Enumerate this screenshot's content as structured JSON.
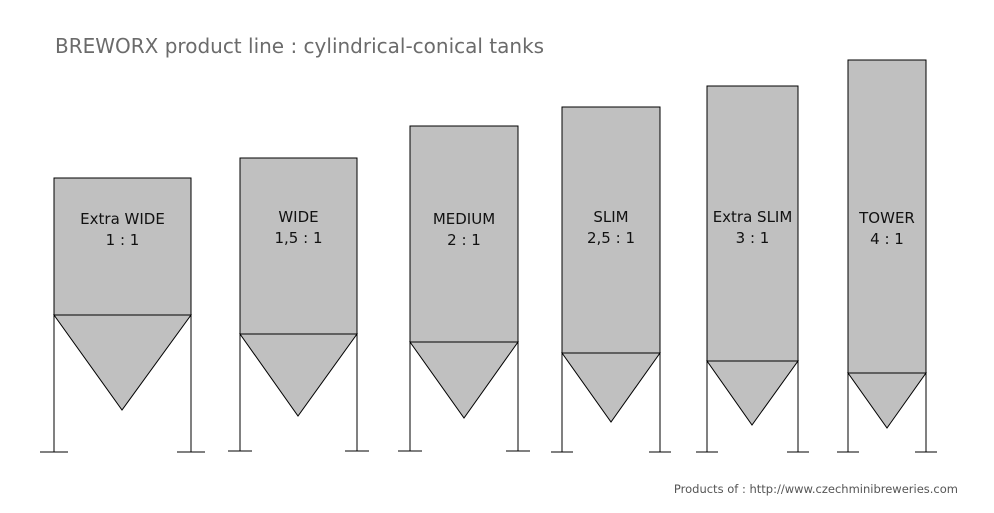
{
  "title": "BREWORX product line : cylindrical-conical tanks",
  "tanks": [
    {
      "name": "Extra WIDE",
      "ratio": "1 : 1"
    },
    {
      "name": "WIDE",
      "ratio": "1,5 : 1"
    },
    {
      "name": "MEDIUM",
      "ratio": "2 : 1"
    },
    {
      "name": "SLIM",
      "ratio": "2,5 : 1"
    },
    {
      "name": "Extra SLIM",
      "ratio": "3 : 1"
    },
    {
      "name": "TOWER",
      "ratio": "4 : 1"
    }
  ],
  "footer": "Products of : http://www.czechminibreweries.com",
  "colors": {
    "tank_fill": "#c0c0c0",
    "stroke": "#000000",
    "title": "#6b6b6b"
  }
}
